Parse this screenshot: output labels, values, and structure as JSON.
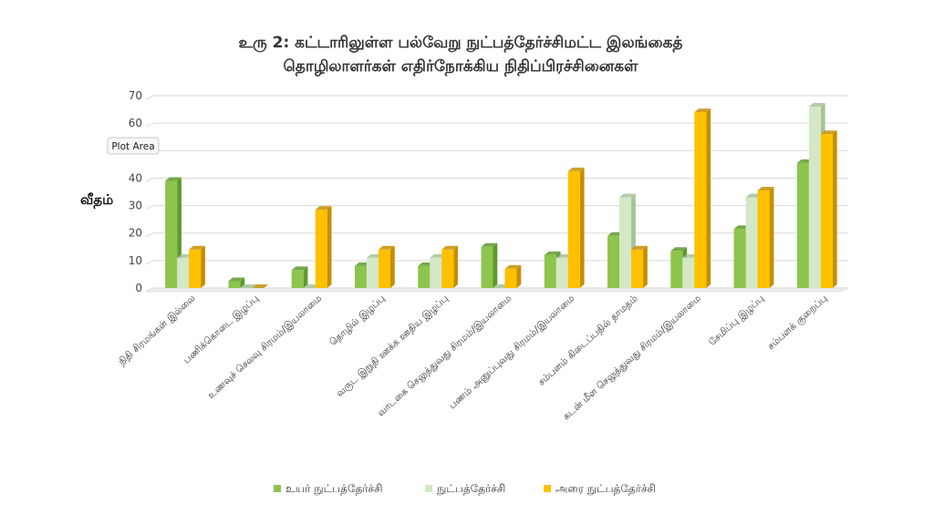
{
  "chart_data": {
    "type": "bar",
    "title_lines": [
      "உரு 2: கட்டாரிலுள்ள பல்வேறு நுட்பத்தேர்ச்சிமட்ட இலங்கைத்",
      "தொழிலாளர்கள் எதிர்நோக்கிய நிதிப்பிரச்சினைகள்"
    ],
    "ylabel": "வீதம்",
    "xlabel": "",
    "ylim": [
      0,
      70
    ],
    "yticks": [
      0,
      10,
      20,
      30,
      40,
      50,
      60,
      70
    ],
    "grid": true,
    "legend_position": "bottom",
    "categories": [
      "நிதி சிரமங்கள் இல்லை",
      "பணிக்கொடை இழப்பு",
      "உணவுச் செலவு சிரமம்/இயலாமை",
      "தொழில் இழப்பு",
      "வருட இறுதி ஊக்க ஊதிய இழப்பு",
      "வாடகை செலுத்துவது சிரமம்/இயலாமை",
      "பணம் அனுப்புவது சிரமம்/இயலாமை",
      "சம்பளம் கிடைப்பதில் தாமதம்",
      "கடன் மீள செலுத்துவது சிரமம்/இயலாமை",
      "சேமிப்பு இழப்பு",
      "சம்பளக் குறைப்பு"
    ],
    "series": [
      {
        "name": "உயர் நுட்பத்தேர்ச்சி",
        "color": "#8dc44e",
        "side": "#5e9a2e",
        "values": [
          39,
          2.5,
          6.5,
          8,
          8,
          15,
          12,
          19,
          13.5,
          21.5,
          45.5
        ]
      },
      {
        "name": "நுட்பத்தேர்ச்சி",
        "color": "#d4e8c6",
        "side": "#a7c39a",
        "values": [
          11,
          0,
          0,
          11,
          11,
          0,
          11,
          33,
          11,
          33,
          66
        ]
      },
      {
        "name": "அரை நுட்பத்தேர்ச்சி",
        "color": "#ffc000",
        "side": "#c58f00",
        "values": [
          14,
          0,
          28.5,
          14,
          14,
          7,
          42.5,
          14,
          64,
          35.5,
          56
        ]
      }
    ]
  },
  "tooltip": {
    "label": "Plot Area"
  }
}
